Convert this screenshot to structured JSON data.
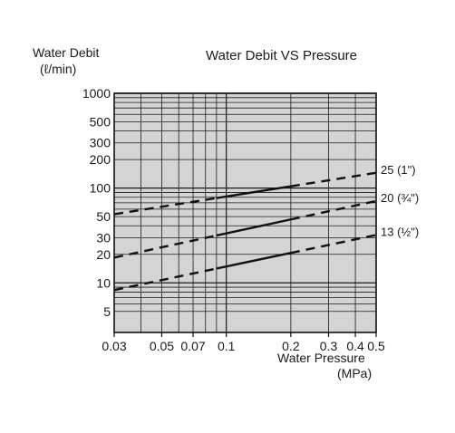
{
  "chart_data": {
    "type": "line",
    "title": "Water Debit VS Pressure",
    "ylabel_line1": "Water Debit",
    "ylabel_line2": "(ℓ/min)",
    "xlabel_line1": "Water Pressure",
    "xlabel_line2": "(MPa)",
    "x_scale": "log",
    "y_scale": "log",
    "xlim": [
      0.03,
      0.5
    ],
    "ylim": [
      3,
      1000
    ],
    "grid": true,
    "x_ticks": [
      {
        "value": 0.03,
        "label": "0.03"
      },
      {
        "value": 0.05,
        "label": "0.05"
      },
      {
        "value": 0.07,
        "label": "0.07"
      },
      {
        "value": 0.1,
        "label": "0.1"
      },
      {
        "value": 0.2,
        "label": "0.2"
      },
      {
        "value": 0.3,
        "label": "0.3"
      },
      {
        "value": 0.4,
        "label": "0.4"
      },
      {
        "value": 0.5,
        "label": "0.5"
      }
    ],
    "y_ticks": [
      {
        "value": 5,
        "label": "5"
      },
      {
        "value": 10,
        "label": "10"
      },
      {
        "value": 20,
        "label": "20"
      },
      {
        "value": 30,
        "label": "30"
      },
      {
        "value": 50,
        "label": "50"
      },
      {
        "value": 100,
        "label": "100"
      },
      {
        "value": 200,
        "label": "200"
      },
      {
        "value": 300,
        "label": "300"
      },
      {
        "value": 500,
        "label": "500"
      },
      {
        "value": 1000,
        "label": "1000"
      }
    ],
    "x_grid": [
      0.03,
      0.04,
      0.05,
      0.06,
      0.07,
      0.08,
      0.09,
      0.1,
      0.2,
      0.3,
      0.4,
      0.5
    ],
    "y_grid": [
      5,
      6,
      7,
      8,
      9,
      10,
      20,
      30,
      40,
      50,
      60,
      70,
      80,
      90,
      100,
      200,
      300,
      400,
      500,
      600,
      700,
      800,
      900,
      1000
    ],
    "series": [
      {
        "name": "25 (1\")",
        "x": [
          0.03,
          0.5
        ],
        "y": [
          53,
          145
        ],
        "solid_range": [
          0.09,
          0.2
        ]
      },
      {
        "name": "20 (¾\")",
        "x": [
          0.03,
          0.5
        ],
        "y": [
          18.5,
          73
        ],
        "solid_range": [
          0.09,
          0.2
        ]
      },
      {
        "name": "13 (½\")",
        "x": [
          0.03,
          0.5
        ],
        "y": [
          8.4,
          32
        ],
        "solid_range": [
          0.09,
          0.2
        ]
      }
    ],
    "colors": {
      "plot_background": "#d4d4d4",
      "grid": "#1a1a1a",
      "line": "#111111"
    }
  }
}
